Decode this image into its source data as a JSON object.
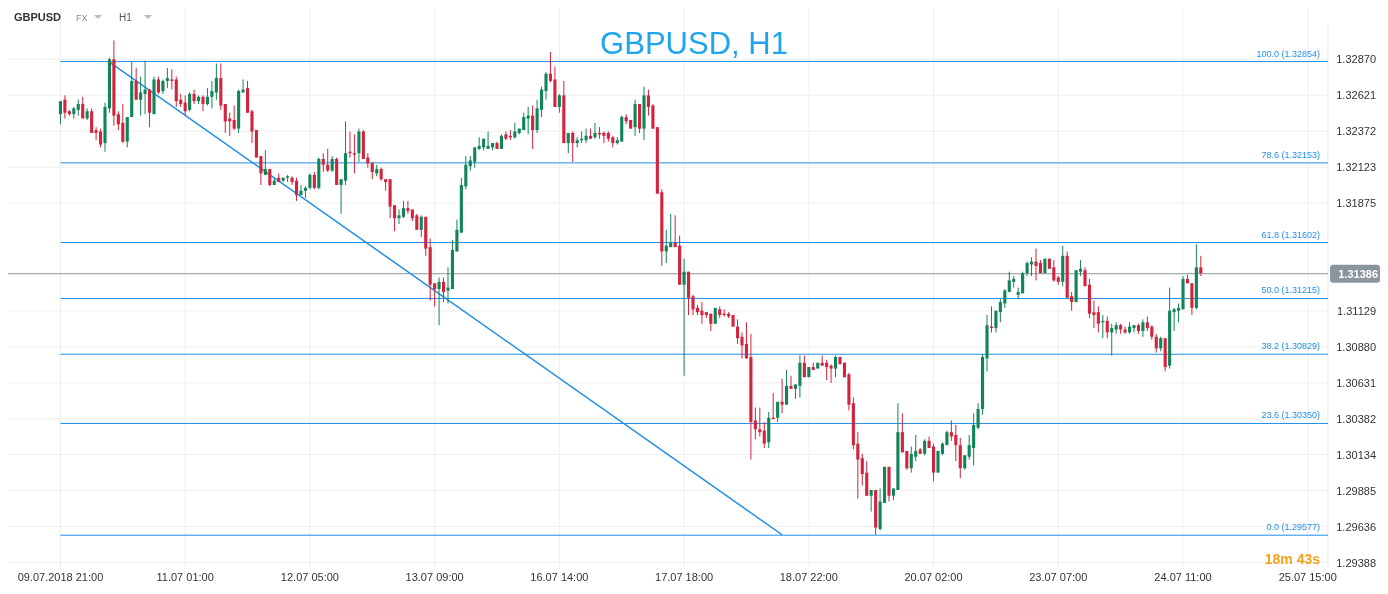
{
  "chart_data": {
    "type": "candlestick",
    "title": "GBPUSD, H1",
    "annotations": [
      "GBPUSD",
      "FX",
      "H1",
      "18m 43s"
    ],
    "categories": [
      "09.07.2018 21:00",
      null,
      null,
      null,
      null,
      null,
      null,
      null,
      null,
      null,
      null,
      null,
      null,
      null,
      null,
      null,
      null,
      null,
      null,
      null,
      null,
      null,
      null,
      null,
      null,
      null,
      null,
      null,
      "11.07 01:00",
      null,
      null,
      null,
      null,
      null,
      null,
      null,
      null,
      null,
      null,
      null,
      null,
      null,
      null,
      null,
      null,
      null,
      null,
      null,
      null,
      null,
      null,
      null,
      null,
      null,
      null,
      null,
      "12.07 05:00",
      null,
      null,
      null,
      null,
      null,
      null,
      null,
      null,
      null,
      null,
      null,
      null,
      null,
      null,
      null,
      null,
      null,
      null,
      null,
      null,
      null,
      null,
      null,
      null,
      null,
      null,
      null,
      "13.07 09:00",
      null,
      null,
      null,
      null,
      null,
      null,
      null,
      null,
      null,
      null,
      null,
      null,
      null,
      null,
      null,
      null,
      null,
      null,
      null,
      null,
      null,
      null,
      null,
      null,
      null,
      null,
      null,
      "16.07 14:00",
      null,
      null,
      null,
      null,
      null,
      null,
      null,
      null,
      null,
      null,
      null,
      null,
      null,
      null,
      null,
      null,
      null,
      null,
      null,
      null,
      null,
      null,
      null,
      null,
      null,
      null,
      null,
      "17.07 18:00",
      null,
      null,
      null,
      null,
      null,
      null,
      null,
      null,
      null,
      null,
      null,
      null,
      null,
      null,
      null,
      null,
      null,
      null,
      null,
      null,
      null,
      null,
      null,
      null,
      null,
      null,
      null,
      "18.07 22:00",
      null,
      null,
      null,
      null,
      null,
      null,
      null,
      null,
      null,
      null,
      null,
      null,
      null,
      null,
      null,
      null,
      null,
      null,
      null,
      null,
      null,
      null,
      null,
      null,
      null,
      null,
      null,
      "20.07 02:00",
      null,
      null,
      null,
      null,
      null,
      null,
      null,
      null,
      null,
      null,
      null,
      null,
      null,
      null,
      null,
      null,
      null,
      null,
      null,
      null,
      null,
      null,
      null,
      null,
      null,
      null,
      null,
      "23.07 07:00",
      null,
      null,
      null,
      null,
      null,
      null,
      null,
      null,
      null,
      null,
      null,
      null,
      null,
      null,
      null,
      null,
      null,
      null,
      null,
      null,
      null,
      null,
      null,
      null,
      null,
      null,
      null,
      "24.07 11:00",
      null,
      null,
      null,
      null,
      null,
      null,
      null,
      null,
      null,
      null,
      null,
      null,
      null,
      null,
      null,
      null,
      null,
      null,
      null,
      null,
      null,
      null,
      null,
      null,
      null,
      null,
      null,
      "25.07 15:00",
      null,
      null,
      null,
      null
    ],
    "colors": [
      "#12845a",
      "#d2243c",
      "#d2243c",
      "#12845a",
      "#12845a",
      "#d2243c",
      "#12845a",
      "#d2243c",
      "#d2243c",
      "#d2243c",
      "#12845a",
      "#12845a",
      "#d2243c",
      "#d2243c",
      "#d2243c",
      "#12845a",
      "#12845a",
      "#d2243c",
      "#12845a",
      "#12845a",
      "#d2243c",
      "#12845a",
      "#d2243c",
      "#12845a",
      "#12845a",
      "#d2243c",
      "#d2243c",
      "#d2243c",
      "#d2243c",
      "#12845a",
      "#d2243c",
      "#12845a",
      "#d2243c",
      "#12845a",
      "#12845a",
      "#12845a",
      "#d2243c",
      "#d2243c",
      "#d2243c",
      "#d2243c",
      "#12845a",
      "#12845a",
      "#d2243c",
      "#d2243c",
      "#d2243c",
      "#d2243c",
      "#12845a",
      "#d2243c",
      "#12845a",
      "#d2243c",
      "#12845a",
      "#12845a",
      "#d2243c",
      "#d2243c",
      "#12845a",
      "#12845a",
      "#12845a",
      "#d2243c",
      "#12845a",
      "#d2243c",
      "#d2243c",
      "#12845a",
      "#d2243c",
      "#12845a",
      "#12845a",
      "#d2243c",
      "#d2243c",
      "#12845a",
      "#d2243c",
      "#d2243c",
      "#d2243c",
      "#12845a",
      "#d2243c",
      "#d2243c",
      "#d2243c",
      "#d2243c",
      "#12845a",
      "#12845a",
      "#d2243c",
      "#d2243c",
      "#d2243c",
      "#12845a",
      "#d2243c",
      "#d2243c",
      "#d2243c",
      "#12845a",
      "#d2243c",
      "#12845a",
      "#12845a",
      "#12845a",
      "#12845a",
      "#12845a",
      "#12845a",
      "#12845a",
      "#12845a",
      "#12845a",
      "#12845a",
      "#12845a",
      "#d2243c",
      "#12845a",
      "#d2243c",
      "#d2243c",
      "#12845a",
      "#12845a",
      "#12845a",
      "#12845a",
      "#d2243c",
      "#12845a",
      "#12845a",
      "#12845a",
      "#d2243c",
      "#d2243c",
      "#12845a",
      "#d2243c",
      "#12845a",
      "#d2243c",
      "#12845a",
      "#12845a",
      "#12845a",
      "#d2243c",
      "#12845a",
      "#d2243c",
      "#d2243c",
      "#d2243c",
      "#d2243c",
      "#12845a",
      "#12845a",
      "#d2243c",
      "#d2243c",
      "#12845a",
      "#d2243c",
      "#12845a",
      "#d2243c",
      "#d2243c",
      "#d2243c",
      "#d2243c",
      "#12845a",
      "#12845a",
      "#d2243c",
      "#d2243c",
      "#12845a",
      "#d2243c",
      "#d2243c",
      "#d2243c",
      "#d2243c",
      "#d2243c",
      "#d2243c",
      "#12845a",
      "#d2243c",
      "#d2243c",
      "#d2243c",
      "#d2243c",
      "#d2243c",
      "#d2243c",
      "#d2243c",
      "#d2243c",
      "#d2243c",
      "#d2243c",
      "#d2243c",
      "#12845a",
      "#d2243c",
      "#12845a",
      "#d2243c",
      "#12845a",
      "#d2243c",
      "#12845a",
      "#12845a",
      "#d2243c",
      "#12845a",
      "#d2243c",
      "#12845a",
      "#d2243c",
      "#d2243c",
      "#d2243c",
      "#12845a",
      "#d2243c",
      "#d2243c",
      "#d2243c",
      "#d2243c",
      "#d2243c",
      "#d2243c",
      "#d2243c",
      "#12845a",
      "#d2243c",
      "#12845a",
      "#12845a",
      "#d2243c",
      "#12845a",
      "#12845a",
      "#d2243c",
      "#d2243c",
      "#12845a",
      "#12845a",
      "#d2243c",
      "#12845a",
      "#d2243c",
      "#d2243c",
      "#12845a",
      "#12845a",
      "#12845a",
      "#d2243c",
      "#d2243c",
      "#d2243c",
      "#12845a",
      "#12845a",
      "#12845a",
      "#12845a",
      "#12845a",
      "#12845a",
      "#d2243c",
      "#12845a",
      "#12845a",
      "#12845a",
      "#12845a",
      "#12845a",
      "#12845a",
      "#12845a",
      "#12845a",
      "#12845a",
      "#d2243c",
      "#d2243c",
      "#12845a",
      "#d2243c",
      "#d2243c",
      "#d2243c",
      "#12845a",
      "#d2243c",
      "#d2243c",
      "#12845a",
      "#12845a",
      "#d2243c",
      "#d2243c",
      "#d2243c",
      "#d2243c",
      "#12845a",
      "#d2243c",
      "#12845a",
      "#12845a",
      "#d2243c",
      "#d2243c",
      "#12845a",
      "#12845a",
      "#d2243c",
      "#12845a",
      "#d2243c",
      "#d2243c",
      "#d2243c",
      "#12845a",
      "#d2243c",
      "#12845a",
      "#12845a",
      "#12845a",
      "#12845a",
      "#d2243c",
      "#d2243c",
      "#12845a",
      "#d2243c",
      null,
      null,
      null,
      null,
      null,
      null,
      null,
      null,
      null,
      null,
      null,
      null,
      null,
      null,
      null,
      null,
      null,
      null,
      null,
      null,
      null,
      null,
      null,
      null,
      null,
      null,
      null,
      null
    ],
    "ohlc": [
      [
        1.3249,
        1.3258,
        1.3242,
        1.3258
      ],
      [
        1.3259,
        1.3262,
        1.3246,
        1.325
      ],
      [
        1.3251,
        1.3252,
        1.3248,
        1.3249
      ],
      [
        1.3249,
        1.3254,
        1.3246,
        1.3253
      ],
      [
        1.3252,
        1.3259,
        1.3248,
        1.3256
      ],
      [
        1.3256,
        1.3261,
        1.3246,
        1.3246
      ],
      [
        1.3246,
        1.3253,
        1.3245,
        1.3251
      ],
      [
        1.3251,
        1.3253,
        1.3236,
        1.3236
      ],
      [
        1.3238,
        1.324,
        1.3231,
        1.3236
      ],
      [
        1.3237,
        1.3239,
        1.3226,
        1.3228
      ],
      [
        1.3229,
        1.3257,
        1.3223,
        1.3254
      ],
      [
        1.3253,
        1.3288,
        1.325,
        1.3287
      ],
      [
        1.3287,
        1.33,
        1.3241,
        1.3248
      ],
      [
        1.3249,
        1.3251,
        1.3238,
        1.3242
      ],
      [
        1.3243,
        1.3256,
        1.3229,
        1.323
      ],
      [
        1.323,
        1.3247,
        1.3226,
        1.3247
      ],
      [
        1.3247,
        1.3285,
        1.3247,
        1.3272
      ],
      [
        1.3272,
        1.3281,
        1.3259,
        1.3259
      ],
      [
        1.3259,
        1.3275,
        1.3248,
        1.3264
      ],
      [
        1.3263,
        1.3286,
        1.3249,
        1.3266
      ],
      [
        1.3266,
        1.3266,
        1.324,
        1.325
      ],
      [
        1.3249,
        1.3275,
        1.3249,
        1.3273
      ],
      [
        1.3273,
        1.3275,
        1.3263,
        1.3264
      ],
      [
        1.3265,
        1.3273,
        1.3263,
        1.3272
      ],
      [
        1.3272,
        1.3281,
        1.3267,
        1.3274
      ],
      [
        1.3273,
        1.328,
        1.3266,
        1.3272
      ],
      [
        1.3273,
        1.3275,
        1.3254,
        1.3258
      ],
      [
        1.3259,
        1.3263,
        1.3254,
        1.3256
      ],
      [
        1.3257,
        1.3262,
        1.3248,
        1.3251
      ],
      [
        1.3252,
        1.3264,
        1.3251,
        1.3263
      ],
      [
        1.3263,
        1.3266,
        1.3256,
        1.3258
      ],
      [
        1.3258,
        1.3262,
        1.3256,
        1.3261
      ],
      [
        1.3261,
        1.3262,
        1.3251,
        1.3256
      ],
      [
        1.3256,
        1.3267,
        1.3255,
        1.3261
      ],
      [
        1.3261,
        1.3272,
        1.3253,
        1.3265
      ],
      [
        1.3264,
        1.3284,
        1.3259,
        1.3274
      ],
      [
        1.3274,
        1.3284,
        1.3252,
        1.3255
      ],
      [
        1.3256,
        1.3256,
        1.3236,
        1.3244
      ],
      [
        1.3246,
        1.325,
        1.3234,
        1.3244
      ],
      [
        1.3245,
        1.3255,
        1.3238,
        1.3239
      ],
      [
        1.3239,
        1.3266,
        1.3236,
        1.3265
      ],
      [
        1.3264,
        1.3273,
        1.3264,
        1.3266
      ],
      [
        1.3267,
        1.3272,
        1.325,
        1.325
      ],
      [
        1.3251,
        1.3252,
        1.3229,
        1.3237
      ],
      [
        1.3238,
        1.3238,
        1.3219,
        1.3219
      ],
      [
        1.322,
        1.322,
        1.32,
        1.3208
      ],
      [
        1.3207,
        1.3224,
        1.3207,
        1.3211
      ],
      [
        1.3211,
        1.3211,
        1.3199,
        1.32
      ],
      [
        1.32,
        1.3205,
        1.32,
        1.3203
      ],
      [
        1.3205,
        1.3208,
        1.3202,
        1.3202
      ],
      [
        1.3203,
        1.3205,
        1.3202,
        1.3205
      ],
      [
        1.3205,
        1.3207,
        1.3202,
        1.3206
      ],
      [
        1.3205,
        1.3206,
        1.32,
        1.3202
      ],
      [
        1.3203,
        1.3205,
        1.3189,
        1.3193
      ],
      [
        1.3193,
        1.32,
        1.3193,
        1.3196
      ],
      [
        1.3196,
        1.3199,
        1.3191,
        1.3198
      ],
      [
        1.3198,
        1.3208,
        1.3197,
        1.3207
      ],
      [
        1.3207,
        1.3209,
        1.3197,
        1.3198
      ],
      [
        1.3198,
        1.3219,
        1.3197,
        1.3218
      ],
      [
        1.3218,
        1.3222,
        1.3209,
        1.3214
      ],
      [
        1.3214,
        1.3225,
        1.3209,
        1.321
      ],
      [
        1.321,
        1.322,
        1.3209,
        1.3218
      ],
      [
        1.3218,
        1.3219,
        1.32,
        1.32
      ],
      [
        1.32,
        1.3204,
        1.318,
        1.3204
      ],
      [
        1.3203,
        1.3244,
        1.32,
        1.3222
      ],
      [
        1.3223,
        1.3237,
        1.3219,
        1.3222
      ],
      [
        1.3222,
        1.3235,
        1.3208,
        1.3221
      ],
      [
        1.3222,
        1.3239,
        1.3216,
        1.3237
      ],
      [
        1.3237,
        1.3238,
        1.3218,
        1.3218
      ],
      [
        1.3219,
        1.3222,
        1.3212,
        1.3215
      ],
      [
        1.3215,
        1.3216,
        1.3204,
        1.3209
      ],
      [
        1.3208,
        1.3214,
        1.3206,
        1.3211
      ],
      [
        1.3211,
        1.3212,
        1.3203,
        1.3204
      ],
      [
        1.3204,
        1.3204,
        1.3196,
        1.3202
      ],
      [
        1.3204,
        1.3204,
        1.3177,
        1.3185
      ],
      [
        1.3186,
        1.3186,
        1.3168,
        1.3177
      ],
      [
        1.3177,
        1.3183,
        1.3173,
        1.3179
      ],
      [
        1.3178,
        1.3189,
        1.3177,
        1.3184
      ],
      [
        1.3184,
        1.3189,
        1.318,
        1.3182
      ],
      [
        1.3183,
        1.3183,
        1.3175,
        1.3177
      ],
      [
        1.3179,
        1.318,
        1.3169,
        1.3169
      ],
      [
        1.3169,
        1.3179,
        1.3164,
        1.3178
      ],
      [
        1.3178,
        1.3178,
        1.3151,
        1.3156
      ],
      [
        1.3157,
        1.3163,
        1.312,
        1.3131
      ],
      [
        1.3132,
        1.3132,
        1.3116,
        1.3128
      ],
      [
        1.3128,
        1.3136,
        1.3103,
        1.3133
      ],
      [
        1.3133,
        1.3136,
        1.3119,
        1.3126
      ],
      [
        1.3127,
        1.3143,
        1.3118,
        1.3129
      ],
      [
        1.3128,
        1.3162,
        1.3128,
        1.3155
      ],
      [
        1.3154,
        1.3176,
        1.3154,
        1.3169
      ],
      [
        1.3167,
        1.3205,
        1.3167,
        1.32
      ],
      [
        1.3199,
        1.322,
        1.3197,
        1.3214
      ],
      [
        1.3213,
        1.322,
        1.321,
        1.3217
      ],
      [
        1.3216,
        1.3226,
        1.3212,
        1.3226
      ],
      [
        1.3225,
        1.3233,
        1.3224,
        1.3227
      ],
      [
        1.3226,
        1.3232,
        1.3224,
        1.3232
      ],
      [
        1.3225,
        1.3237,
        1.3225,
        1.3227
      ],
      [
        1.3226,
        1.3229,
        1.3224,
        1.3229
      ],
      [
        1.3229,
        1.323,
        1.3225,
        1.3225
      ],
      [
        1.3225,
        1.3235,
        1.3225,
        1.3234
      ],
      [
        1.3235,
        1.3237,
        1.3231,
        1.3232
      ],
      [
        1.3234,
        1.3238,
        1.3231,
        1.3233
      ],
      [
        1.3233,
        1.3243,
        1.3232,
        1.3237
      ],
      [
        1.3236,
        1.3239,
        1.3235,
        1.3239
      ],
      [
        1.3238,
        1.325,
        1.3238,
        1.3247
      ],
      [
        1.3246,
        1.3254,
        1.3235,
        1.3248
      ],
      [
        1.3248,
        1.3255,
        1.3225,
        1.3238
      ],
      [
        1.3238,
        1.3259,
        1.3236,
        1.3253
      ],
      [
        1.3252,
        1.3268,
        1.3247,
        1.3266
      ],
      [
        1.3265,
        1.3278,
        1.3259,
        1.3277
      ],
      [
        1.3277,
        1.3292,
        1.3271,
        1.3272
      ],
      [
        1.3273,
        1.3282,
        1.3254,
        1.3254
      ],
      [
        1.3254,
        1.3263,
        1.325,
        1.3262
      ],
      [
        1.3262,
        1.3272,
        1.3229,
        1.3229
      ],
      [
        1.3229,
        1.3236,
        1.3222,
        1.3236
      ],
      [
        1.3236,
        1.3237,
        1.3216,
        1.3229
      ],
      [
        1.3229,
        1.3233,
        1.3226,
        1.3231
      ],
      [
        1.3231,
        1.3237,
        1.3229,
        1.3232
      ],
      [
        1.3231,
        1.3239,
        1.3229,
        1.3234
      ],
      [
        1.3234,
        1.3239,
        1.3232,
        1.3232
      ],
      [
        1.3233,
        1.3243,
        1.3232,
        1.3236
      ],
      [
        1.3236,
        1.324,
        1.3232,
        1.3235
      ],
      [
        1.3236,
        1.3237,
        1.3229,
        1.3234
      ],
      [
        1.3236,
        1.3237,
        1.323,
        1.3232
      ],
      [
        1.3233,
        1.3234,
        1.3226,
        1.3229
      ],
      [
        1.3229,
        1.3233,
        1.3228,
        1.3231
      ],
      [
        1.323,
        1.3248,
        1.323,
        1.3247
      ],
      [
        1.3247,
        1.3249,
        1.3242,
        1.3244
      ],
      [
        1.3245,
        1.3245,
        1.3239,
        1.3239
      ],
      [
        1.324,
        1.3259,
        1.3234,
        1.3256
      ],
      [
        1.3256,
        1.3256,
        1.3236,
        1.3239
      ],
      [
        1.3239,
        1.3268,
        1.3231,
        1.3262
      ],
      [
        1.3262,
        1.3266,
        1.3248,
        1.3254
      ],
      [
        1.3255,
        1.3256,
        1.3239,
        1.3239
      ],
      [
        1.324,
        1.324,
        1.3194,
        1.3194
      ],
      [
        1.3195,
        1.3197,
        1.3144,
        1.3154
      ],
      [
        1.3154,
        1.3169,
        1.3146,
        1.3158
      ],
      [
        1.3157,
        1.318,
        1.3157,
        1.316
      ],
      [
        1.316,
        1.3179,
        1.3157,
        1.3157
      ],
      [
        1.3158,
        1.3165,
        1.3131,
        1.3131
      ],
      [
        1.3131,
        1.3149,
        1.3068,
        1.314
      ],
      [
        1.314,
        1.314,
        1.311,
        1.3122
      ],
      [
        1.3123,
        1.3124,
        1.311,
        1.3114
      ],
      [
        1.3115,
        1.3117,
        1.311,
        1.3112
      ],
      [
        1.3113,
        1.3119,
        1.3104,
        1.311
      ],
      [
        1.3112,
        1.3112,
        1.3108,
        1.311
      ],
      [
        1.3111,
        1.3111,
        1.3099,
        1.3104
      ],
      [
        1.3104,
        1.3115,
        1.3104,
        1.3115
      ],
      [
        1.3114,
        1.3116,
        1.3108,
        1.311
      ],
      [
        1.3111,
        1.3114,
        1.3109,
        1.311
      ],
      [
        1.3111,
        1.3112,
        1.3108,
        1.3109
      ],
      [
        1.311,
        1.311,
        1.3102,
        1.3102
      ],
      [
        1.3102,
        1.3107,
        1.309,
        1.3094
      ],
      [
        1.3095,
        1.3098,
        1.308,
        1.3089
      ],
      [
        1.309,
        1.3105,
        1.308,
        1.308
      ],
      [
        1.3081,
        1.3097,
        1.301,
        1.3036
      ],
      [
        1.3037,
        1.3046,
        1.3024,
        1.3031
      ],
      [
        1.3031,
        1.3046,
        1.3026,
        1.3029
      ],
      [
        1.303,
        1.3036,
        1.3018,
        1.3021
      ],
      [
        1.3022,
        1.3043,
        1.3018,
        1.3039
      ],
      [
        1.3039,
        1.3056,
        1.3038,
        1.3038
      ],
      [
        1.3039,
        1.305,
        1.3036,
        1.305
      ],
      [
        1.305,
        1.3066,
        1.3042,
        1.3048
      ],
      [
        1.3048,
        1.3072,
        1.3048,
        1.3061
      ],
      [
        1.3061,
        1.3068,
        1.3059,
        1.3059
      ],
      [
        1.3059,
        1.3062,
        1.3052,
        1.3062
      ],
      [
        1.3061,
        1.3082,
        1.3053,
        1.3077
      ],
      [
        1.3077,
        1.3082,
        1.3067,
        1.3067
      ],
      [
        1.3067,
        1.3074,
        1.3067,
        1.3074
      ],
      [
        1.3074,
        1.3077,
        1.3072,
        1.3072
      ],
      [
        1.3073,
        1.3077,
        1.3073,
        1.3077
      ],
      [
        1.3077,
        1.3082,
        1.3075,
        1.3075
      ],
      [
        1.3077,
        1.3079,
        1.3065,
        1.3074
      ],
      [
        1.3075,
        1.3076,
        1.3063,
        1.3073
      ],
      [
        1.3073,
        1.3082,
        1.3067,
        1.3081
      ],
      [
        1.3081,
        1.3081,
        1.3076,
        1.3076
      ],
      [
        1.3077,
        1.3077,
        1.3067,
        1.3067
      ],
      [
        1.3069,
        1.307,
        1.3044,
        1.3048
      ],
      [
        1.3049,
        1.3053,
        1.3017,
        1.302
      ],
      [
        1.3021,
        1.3029,
        1.2983,
        1.301
      ],
      [
        1.3011,
        1.3014,
        1.2992,
        1.3
      ],
      [
        1.3001,
        1.3009,
        1.2985,
        1.2985
      ],
      [
        1.2985,
        1.2989,
        1.2974,
        1.2989
      ],
      [
        1.2989,
        1.2989,
        1.2958,
        1.2963
      ],
      [
        1.2962,
        1.299,
        1.2961,
        1.2981
      ],
      [
        1.298,
        1.3005,
        1.298,
        1.3005
      ],
      [
        1.3005,
        1.3005,
        1.2981,
        1.2985
      ],
      [
        1.2985,
        1.299,
        1.2982,
        1.299
      ],
      [
        1.2989,
        1.3049,
        1.2989,
        1.3029
      ],
      [
        1.3029,
        1.3042,
        1.3015,
        1.3015
      ],
      [
        1.3016,
        1.3016,
        1.3003,
        1.3004
      ],
      [
        1.3004,
        1.3019,
        1.3001,
        1.3014
      ],
      [
        1.3012,
        1.3027,
        1.3009,
        1.3016
      ],
      [
        1.3017,
        1.3018,
        1.3014,
        1.3014
      ],
      [
        1.3014,
        1.3024,
        1.3013,
        1.3023
      ],
      [
        1.3023,
        1.3026,
        1.3018,
        1.3018
      ],
      [
        1.3019,
        1.3021,
        1.2995,
        1.3001
      ],
      [
        1.3001,
        1.3016,
        1.3001,
        1.3016
      ],
      [
        1.3014,
        1.3022,
        1.3013,
        1.3021
      ],
      [
        1.302,
        1.303,
        1.302,
        1.3029
      ],
      [
        1.3029,
        1.3037,
        1.3023,
        1.3026
      ],
      [
        1.3027,
        1.3034,
        1.3009,
        1.302
      ],
      [
        1.302,
        1.3025,
        1.2997,
        1.3004
      ],
      [
        1.3004,
        1.3013,
        1.3003,
        1.3013
      ],
      [
        1.3012,
        1.3027,
        1.301,
        1.302
      ],
      [
        1.3018,
        1.3042,
        1.3006,
        1.3034
      ],
      [
        1.3032,
        1.3049,
        1.3031,
        1.3045
      ],
      [
        1.3045,
        1.3083,
        1.3041,
        1.3081
      ],
      [
        1.308,
        1.311,
        1.3071,
        1.3103
      ],
      [
        1.3102,
        1.3116,
        1.3098,
        1.3101
      ],
      [
        1.3101,
        1.3113,
        1.3098,
        1.3113
      ],
      [
        1.3112,
        1.3121,
        1.3105,
        1.3119
      ],
      [
        1.3118,
        1.3128,
        1.3115,
        1.3127
      ],
      [
        1.3126,
        1.314,
        1.3126,
        1.3134
      ],
      [
        1.3133,
        1.3137,
        1.3129,
        1.3135
      ],
      [
        1.3124,
        1.3129,
        1.3121,
        1.3126
      ],
      [
        1.3125,
        1.314,
        1.3125,
        1.3139
      ],
      [
        1.3139,
        1.3147,
        1.3137,
        1.3146
      ],
      [
        1.3145,
        1.315,
        1.3137,
        1.3147
      ],
      [
        1.3147,
        1.3156,
        1.3134,
        1.3144
      ],
      [
        1.3146,
        1.3148,
        1.3139,
        1.3139
      ],
      [
        1.3139,
        1.3149,
        1.3139,
        1.3149
      ],
      [
        1.3149,
        1.3149,
        1.3142,
        1.3142
      ],
      [
        1.3143,
        1.3148,
        1.3133,
        1.3134
      ],
      [
        1.3136,
        1.3137,
        1.3131,
        1.3133
      ],
      [
        1.3133,
        1.3158,
        1.313,
        1.3151
      ],
      [
        1.3151,
        1.3154,
        1.3122,
        1.3122
      ],
      [
        1.3123,
        1.3126,
        1.3113,
        1.3119
      ],
      [
        1.3119,
        1.3141,
        1.3119,
        1.3141
      ],
      [
        1.314,
        1.3148,
        1.3137,
        1.3142
      ],
      [
        1.3141,
        1.3143,
        1.313,
        1.313
      ],
      [
        1.3131,
        1.3135,
        1.3108,
        1.3111
      ],
      [
        1.3112,
        1.312,
        1.3101,
        1.311
      ],
      [
        1.3112,
        1.3116,
        1.3098,
        1.3104
      ],
      [
        1.3105,
        1.311,
        1.3094,
        1.3106
      ],
      [
        1.3106,
        1.3109,
        1.3094,
        1.3098
      ],
      [
        1.3098,
        1.3104,
        1.3082,
        1.3101
      ],
      [
        1.31,
        1.3105,
        1.3097,
        1.3103
      ],
      [
        1.3103,
        1.3104,
        1.3097,
        1.31
      ],
      [
        1.31,
        1.3102,
        1.3097,
        1.3098
      ],
      [
        1.3098,
        1.3105,
        1.3097,
        1.3102
      ],
      [
        1.3101,
        1.3103,
        1.3098,
        1.3103
      ],
      [
        1.3103,
        1.3104,
        1.3097,
        1.3099
      ],
      [
        1.3099,
        1.3107,
        1.3095,
        1.3105
      ],
      [
        1.3105,
        1.3109,
        1.3099,
        1.3101
      ],
      [
        1.3102,
        1.3103,
        1.3093,
        1.3095
      ],
      [
        1.3095,
        1.3097,
        1.3084,
        1.3087
      ],
      [
        1.3087,
        1.3095,
        1.3085,
        1.3094
      ],
      [
        1.3094,
        1.3094,
        1.3071,
        1.3074
      ],
      [
        1.3075,
        1.3129,
        1.3073,
        1.3113
      ],
      [
        1.3112,
        1.3115,
        1.3099,
        1.3114
      ],
      [
        1.3113,
        1.3118,
        1.3105,
        1.3115
      ],
      [
        1.3114,
        1.3137,
        1.3114,
        1.3135
      ],
      [
        1.3135,
        1.3138,
        1.3132,
        1.3132
      ],
      [
        1.3132,
        1.3132,
        1.311,
        1.3115
      ],
      [
        1.3115,
        1.3159,
        1.3114,
        1.3143
      ],
      [
        1.3143,
        1.3151,
        1.3137,
        1.3139
      ],
      null,
      null,
      null,
      null,
      null,
      null,
      null,
      null,
      null,
      null,
      null,
      null,
      null,
      null,
      null,
      null,
      null,
      null,
      null,
      null,
      null,
      null,
      null,
      null,
      null,
      null,
      null,
      null
    ],
    "series": [
      {
        "type": "line",
        "color": "#1e8fe8",
        "values": [
          null,
          null,
          null,
          null,
          null,
          null,
          null,
          null,
          null,
          null,
          null,
          1.3285,
          null,
          null,
          null,
          null,
          null,
          null,
          null,
          null,
          null,
          null,
          null,
          null,
          null,
          null,
          null,
          null,
          null,
          null,
          null,
          null,
          null,
          null,
          null,
          null,
          null,
          null,
          null,
          null,
          null,
          null,
          null,
          null,
          null,
          null,
          null,
          null,
          null,
          null,
          null,
          null,
          null,
          null,
          null,
          null,
          null,
          null,
          null,
          null,
          null,
          null,
          null,
          null,
          null,
          null,
          null,
          null,
          null,
          null,
          null,
          null,
          null,
          null,
          null,
          null,
          null,
          null,
          null,
          null,
          null,
          null,
          null,
          null,
          null,
          null,
          null,
          null,
          null,
          null,
          null,
          null,
          null,
          null,
          null,
          null,
          null,
          null,
          null,
          null,
          null,
          null,
          null,
          null,
          null,
          null,
          null,
          null,
          null,
          null,
          null,
          null,
          null,
          null,
          null,
          null,
          null,
          null,
          null,
          null,
          null,
          null,
          null,
          null,
          null,
          null,
          null,
          null,
          null,
          null,
          null,
          null,
          null,
          null,
          null,
          null,
          null,
          null,
          null,
          null,
          null,
          null,
          null,
          null,
          null,
          null,
          null,
          null,
          null,
          null,
          null,
          null,
          null,
          null,
          null,
          null,
          null,
          null,
          null,
          null,
          null,
          null,
          1.2958,
          null,
          null,
          null,
          null,
          null,
          null,
          null,
          null,
          null,
          null,
          null,
          null,
          null,
          null,
          null,
          null,
          null,
          null,
          null,
          null,
          null,
          null,
          null,
          null,
          null,
          null,
          null,
          null,
          null,
          null,
          null,
          null,
          null,
          null,
          null,
          null,
          null,
          null,
          null,
          null,
          null,
          null,
          null,
          null,
          null,
          null,
          null,
          null,
          null,
          null,
          null,
          null,
          null,
          null,
          null,
          null,
          null,
          null,
          null,
          null,
          null,
          null,
          null,
          null,
          null,
          null,
          null,
          null,
          null,
          null,
          null,
          null,
          null,
          null,
          null,
          null,
          null,
          null,
          null,
          null,
          null,
          null,
          null,
          null,
          null,
          null,
          null,
          null,
          null,
          null,
          null,
          null,
          null,
          null,
          null,
          null,
          null,
          null,
          null,
          null,
          null,
          null,
          null,
          null,
          null,
          null,
          null,
          null,
          null,
          null,
          null,
          null,
          null,
          null,
          null,
          null,
          null,
          null,
          null,
          null,
          null,
          null
        ]
      }
    ],
    "ylim": [
      1.2935,
      1.331
    ],
    "yticks": [
      1.29388,
      1.29636,
      1.29885,
      1.30134,
      1.30382,
      1.30631,
      {
        "value": 1.3088,
        "label": "1.30880"
      },
      1.31129,
      1.31875,
      1.32123,
      1.32372,
      1.32621,
      {
        "value": 1.3287,
        "label": "1.32870"
      }
    ],
    "ref_lines": [
      {
        "axis": "y",
        "value": 1.32854,
        "label": "100.0 (1.32854)",
        "color": "#1e8fe8"
      },
      {
        "axis": "y",
        "value": 1.32153,
        "label": "78.6 (1.32153)",
        "color": "#1e8fe8"
      },
      {
        "axis": "y",
        "value": 1.31602,
        "label": "61.8 (1.31602)",
        "color": "#1e8fe8"
      },
      {
        "axis": "y",
        "value": 1.31215,
        "label": "50.0 (1.31215)",
        "color": "#1e8fe8"
      },
      {
        "axis": "y",
        "value": 1.30829,
        "label": "38.2 (1.30829)",
        "color": "#1e8fe8"
      },
      {
        "axis": "y",
        "value": 1.3035,
        "label": "23.6 (1.30350)",
        "color": "#1e8fe8"
      },
      {
        "axis": "y",
        "value": 1.29577,
        "label": "0.0 (1.29577)",
        "color": "#1e8fe8"
      },
      {
        "axis": "y",
        "value": 1.31386,
        "label": "1.31386",
        "color": "#8a959e"
      }
    ],
    "grid": true
  }
}
